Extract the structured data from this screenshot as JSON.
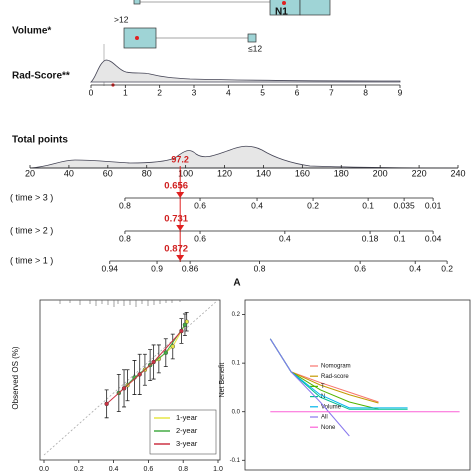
{
  "chart_data": [
    {
      "type": "nomogram",
      "label": "A",
      "top_label": "N1",
      "volume": {
        "label": "Volume*",
        "levels": [
          ">12",
          "≤12"
        ]
      },
      "rad_score": {
        "label": "Rad-Score**",
        "xlim": [
          0,
          9
        ],
        "xticks": [
          0,
          1,
          2,
          3,
          4,
          5,
          6,
          7,
          8,
          9
        ]
      },
      "total_points": {
        "label": "Total points",
        "xlim": [
          20,
          240
        ],
        "xticks": [
          20,
          40,
          60,
          80,
          100,
          120,
          140,
          160,
          180,
          200,
          220,
          240
        ],
        "value": 97.2
      },
      "survival": [
        {
          "label": "( time > 3 )",
          "value": 0.656,
          "xticks": [
            {
              "value": 0.8,
              "points": 68.8
            },
            {
              "value": 0.6,
              "points": 107.4
            },
            {
              "value": 0.4,
              "points": 136.7
            },
            {
              "value": 0.2,
              "points": 165.5
            },
            {
              "value": 0.1,
              "points": 193.8
            },
            {
              "value": 0.035,
              "points": 212.3
            },
            {
              "value": 0.01,
              "points": 227.2
            }
          ]
        },
        {
          "label": "( time > 2 )",
          "value": 0.731,
          "xticks": [
            {
              "value": 0.8,
              "points": 68.8
            },
            {
              "value": 0.6,
              "points": 107.4
            },
            {
              "value": 0.4,
              "points": 151
            },
            {
              "value": 0.18,
              "points": 194.8
            },
            {
              "value": 0.1,
              "points": 210
            },
            {
              "value": 0.04,
              "points": 227.2
            }
          ]
        },
        {
          "label": "( time > 1 )",
          "value": 0.872,
          "xticks": [
            {
              "value": 0.94,
              "points": 61
            },
            {
              "value": 0.9,
              "points": 85.3
            },
            {
              "value": 0.86,
              "points": 102.3
            },
            {
              "value": 0.8,
              "points": 138
            },
            {
              "value": 0.6,
              "points": 189.7
            },
            {
              "value": 0.4,
              "points": 218
            },
            {
              "value": 0.2,
              "points": 234.4
            }
          ]
        }
      ]
    },
    {
      "type": "calibration",
      "y_label": "Observed OS (%)",
      "xlim": [
        0,
        1
      ],
      "ylim": [
        0,
        1
      ],
      "xticks": [
        {
          "value": 0,
          "label": "0.0"
        },
        0.2,
        0.4,
        0.6,
        0.8,
        {
          "value": 1,
          "label": "1.0"
        }
      ],
      "series": [
        {
          "name": "1-year",
          "color": "#e6e645",
          "x": [
            0.48,
            0.58,
            0.66,
            0.74,
            0.82
          ],
          "values": [
            0.45,
            0.55,
            0.62,
            0.7,
            0.86
          ],
          "errors": [
            0.1,
            0.1,
            0.09,
            0.08,
            0.06
          ]
        },
        {
          "name": "2-year",
          "color": "#44aa44",
          "x": [
            0.43,
            0.52,
            0.61,
            0.7,
            0.81
          ],
          "values": [
            0.4,
            0.5,
            0.58,
            0.66,
            0.84
          ],
          "errors": [
            0.12,
            0.11,
            0.1,
            0.09,
            0.07
          ]
        },
        {
          "name": "3-year",
          "color": "#cc3344",
          "x": [
            0.36,
            0.46,
            0.55,
            0.63,
            0.79
          ],
          "values": [
            0.33,
            0.43,
            0.52,
            0.6,
            0.8
          ],
          "errors": [
            0.09,
            0.12,
            0.13,
            0.11,
            0.08
          ]
        }
      ]
    },
    {
      "type": "line",
      "y_label": "Net Benefit",
      "xlim": [
        0,
        1
      ],
      "ylim": [
        -0.12,
        0.23
      ],
      "yticks": [
        -0.1,
        {
          "value": 0,
          "label": "0.0"
        },
        0.1,
        0.2
      ],
      "x": [
        0.04,
        0.14,
        0.28,
        0.42,
        0.56,
        0.7,
        0.95
      ],
      "series": [
        {
          "name": "Nomogram",
          "color": "#F8766D",
          "values": [
            0.15,
            0.082,
            0.06,
            0.04,
            0.02,
            null,
            null
          ]
        },
        {
          "name": "Rad-score",
          "color": "#C49A00",
          "values": [
            0.15,
            0.082,
            0.055,
            0.035,
            0.018,
            null,
            null
          ]
        },
        {
          "name": "T",
          "color": "#53B400",
          "values": [
            0.15,
            0.082,
            0.045,
            0.02,
            0.005,
            null,
            null
          ]
        },
        {
          "name": "N",
          "color": "#00C094",
          "values": [
            0.15,
            0.082,
            0.03,
            0.005,
            0.005,
            0.005,
            null
          ]
        },
        {
          "name": "Volume",
          "color": "#00B6EB",
          "values": [
            0.15,
            0.082,
            0.035,
            0.008,
            0.008,
            0.008,
            null
          ]
        },
        {
          "name": "All",
          "color": "#8877ee",
          "values": [
            0.15,
            0.082,
            0.02,
            -0.05,
            null,
            null,
            null
          ]
        },
        {
          "name": "None",
          "color": "#FB61D7",
          "values": [
            0,
            0,
            0,
            0,
            0,
            0,
            0
          ]
        }
      ]
    }
  ]
}
